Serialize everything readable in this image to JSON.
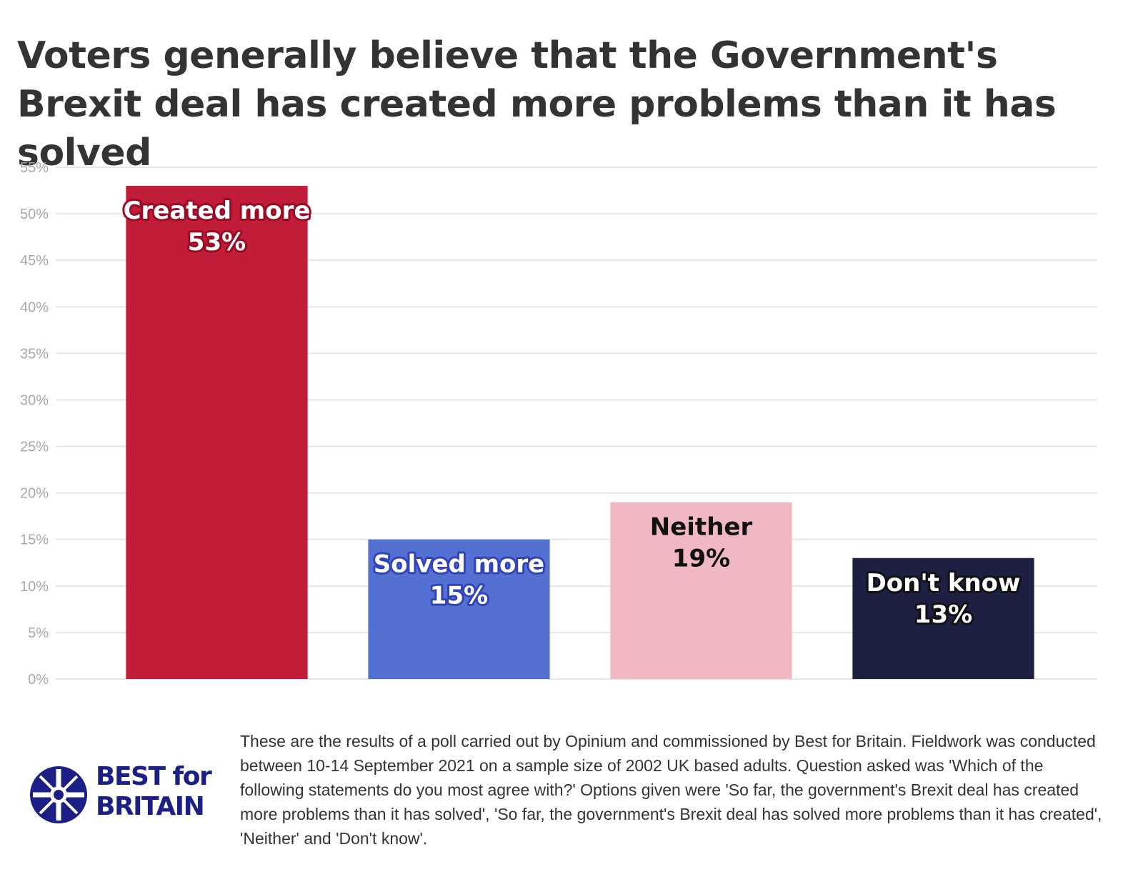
{
  "title": "Voters generally believe that the Government's Brexit deal has created more problems than it has solved",
  "chart_data": {
    "type": "bar",
    "categories": [
      "Created more",
      "Solved more",
      "Neither",
      "Don't know"
    ],
    "values": [
      53,
      15,
      19,
      13
    ],
    "value_labels": [
      "53%",
      "15%",
      "19%",
      "13%"
    ],
    "colors": [
      "#c11d38",
      "#5470d3",
      "#f0b8c3",
      "#1e2043"
    ],
    "label_colors": [
      "#ffffff",
      "#ffffff",
      "#111111",
      "#ffffff"
    ],
    "label_outline_colors": [
      "#9a0b26",
      "#3243b8",
      "#f0b8c3",
      "#111111"
    ],
    "yticks": [
      "0%",
      "5%",
      "10%",
      "15%",
      "20%",
      "25%",
      "30%",
      "35%",
      "40%",
      "45%",
      "50%",
      "55%"
    ],
    "ylim": [
      0,
      55
    ],
    "grid": true,
    "xlabel": "",
    "ylabel": ""
  },
  "footer": {
    "note": "These are the results of a poll carried out by Opinium and commissioned by Best for Britain. Fieldwork was conducted between 10-14 September 2021 on a sample size of 2002 UK based adults. Question asked was 'Which of the following statements do you most agree with?' Options given were 'So far, the government's Brexit deal has created more problems than it has solved', 'So far, the government's Brexit deal has solved more problems than it has created', 'Neither' and 'Don't know'."
  },
  "logo": {
    "line1": "BEST for",
    "line2": "BRITAIN",
    "color": "#1c1f86"
  }
}
